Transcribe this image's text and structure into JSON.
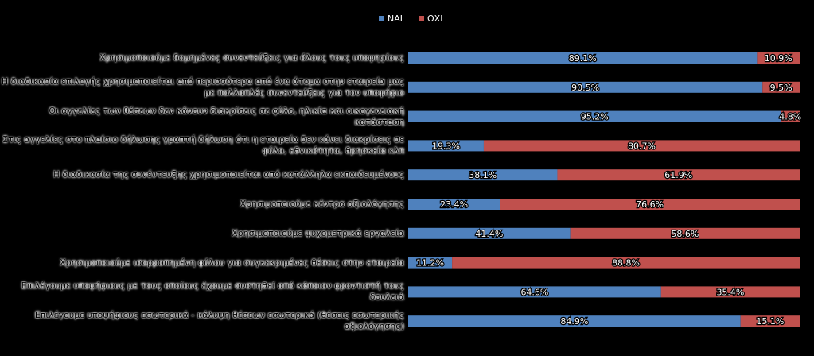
{
  "chart_data": {
    "type": "bar",
    "orientation": "horizontal",
    "stacked": true,
    "categories": [
      "Χρησιμοποιούμε δομημένες συνεντεύξεις για όλους τους υποψηφίους",
      "Η διαδικασία επιλογής χρησιμοποιείται από περισσότερα από ένα άτομα στην εταιρεία μας με πολλαπλές συνεντεύξεις για τον υποψήφιο",
      "Οι αγγελίες των θέσεων δεν κάνουν διακρίσεις σε φύλο, ηλικία και οικογενειακή κατάσταση",
      "Στις αγγελίες στο πλαίσιο δήλωσης γραπτή δήλωση ότι η εταιρεία δεν κάνει διακρίσεις σε φύλο, εθνικότητα, θρησκεία κλπ",
      "Η διαδικασία της συνέντευξης χρησιμοποιείται από κατάλληλα εκπαιδευμένους",
      "Χρησιμοποιούμε κέντρα αξιολόγησης",
      "Χρησιμοποιούμε ψυχομετρικά εργαλεία",
      "Χρησιμοποιούμε ισορροπημένη φύλου για συγκεκριμένες θέσεις στην εταιρεία",
      "Επιλέγουμε υποψήφιους με τους οποίους έχουμε συστηθεί από κάποιον φροντιστή τους δουλειά",
      "Επιλέγουμε υποψήφιους εσωτερικά - κάλυψη θέσεων εσωτερικά (θέσεις εσωτερικής αξιολόγησης)"
    ],
    "series": [
      {
        "name": "ΝΑΙ",
        "color": "#4f81bd",
        "values": [
          89.1,
          90.5,
          95.2,
          19.3,
          38.1,
          23.4,
          41.4,
          11.2,
          64.6,
          84.9
        ]
      },
      {
        "name": "ΟΧΙ",
        "color": "#c0504d",
        "values": [
          10.9,
          9.5,
          4.8,
          80.7,
          61.9,
          76.6,
          58.6,
          88.8,
          35.4,
          15.1
        ]
      }
    ],
    "value_labels": [
      [
        "89.1%",
        "90.5%",
        "95.2%",
        "19.3%",
        "38.1%",
        "23.4%",
        "41.4%",
        "11.2%",
        "64.6%",
        "84.9%"
      ],
      [
        "10.9%",
        "9.5%",
        "4.8%",
        "80.7%",
        "61.9%",
        "76.6%",
        "58.6%",
        "88.8%",
        "35.4%",
        "15.1%"
      ]
    ],
    "xlim": [
      0,
      100
    ],
    "legend_position": "top-center",
    "grid": false
  }
}
